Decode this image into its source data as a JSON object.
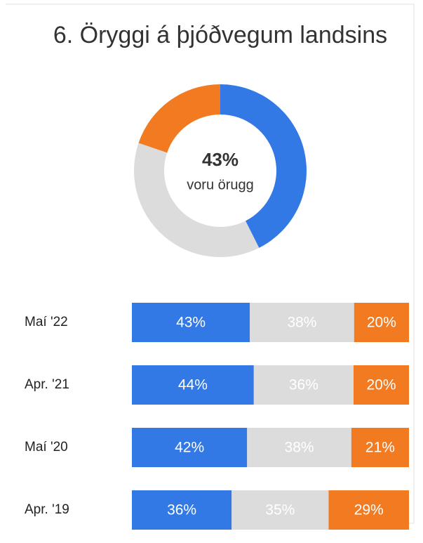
{
  "chart_data": [
    {
      "type": "donut",
      "title": "6. Öryggi á þjóðvegum landsins",
      "values": [
        43,
        38,
        20
      ],
      "value_labels": [
        "43%",
        "38%",
        "20%"
      ],
      "colors": [
        "#3279e6",
        "#dcdcdc",
        "#f27b21"
      ],
      "center_text": "voru örugg"
    },
    {
      "type": "stacked-bar",
      "orientation": "horizontal",
      "categories": [
        "Maí '22",
        "Apr. '21",
        "Maí '20",
        "Apr. '19"
      ],
      "series": [
        {
          "color": "#3279e6",
          "values": [
            43,
            44,
            42,
            36
          ],
          "value_labels": [
            "43%",
            "44%",
            "42%",
            "36%"
          ]
        },
        {
          "color": "#dcdcdc",
          "values": [
            38,
            36,
            38,
            35
          ],
          "value_labels": [
            "38%",
            "36%",
            "38%",
            "35%"
          ]
        },
        {
          "color": "#f27b21",
          "values": [
            20,
            20,
            21,
            29
          ],
          "value_labels": [
            "20%",
            "20%",
            "21%",
            "29%"
          ]
        }
      ]
    }
  ]
}
